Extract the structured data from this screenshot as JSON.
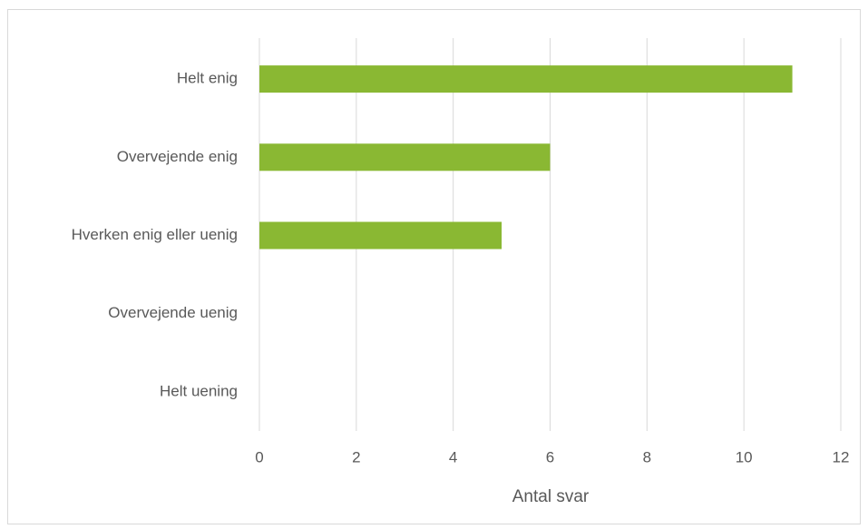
{
  "chart_data": {
    "type": "bar",
    "orientation": "horizontal",
    "categories": [
      "Helt enig",
      "Overvejende enig",
      "Hverken enig eller uenig",
      "Overvejende uenig",
      "Helt uening"
    ],
    "values": [
      11,
      6,
      5,
      0,
      0
    ],
    "color": "#8ab833",
    "xlim": [
      0,
      12
    ],
    "xticks": [
      0,
      2,
      4,
      6,
      8,
      10,
      12
    ],
    "grid": true,
    "xlabel": "Antal svar"
  }
}
